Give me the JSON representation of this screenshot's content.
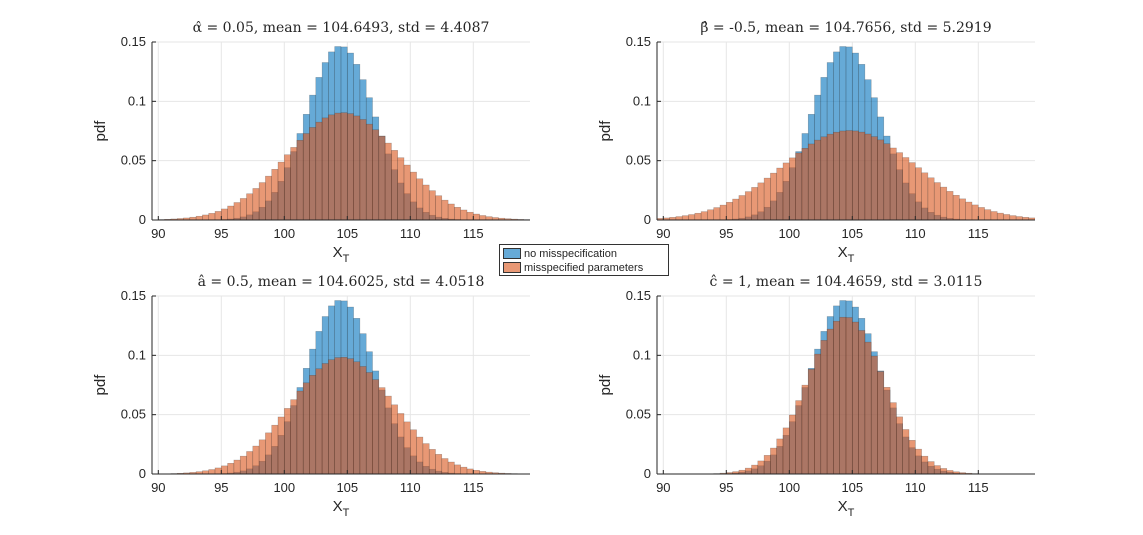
{
  "colors": {
    "no_misspec": "#0072BD",
    "misspec": "#D95319",
    "grid": "#e6e6e6",
    "axis": "#262626"
  },
  "legend": {
    "items": [
      {
        "label": "no misspecification",
        "color": "#0072BD"
      },
      {
        "label": "misspecified parameters",
        "color": "#D95319"
      }
    ]
  },
  "chart_data": [
    {
      "type": "histogram",
      "title": "α̂ = 0.05, mean = 104.6493, std = 4.4087",
      "xlabel": "X",
      "xlabel_sub": "T",
      "ylabel": "pdf",
      "xlim": [
        89.5,
        119.5
      ],
      "ylim": [
        0,
        0.15
      ],
      "xticks": [
        90,
        95,
        100,
        105,
        110,
        115
      ],
      "xtick_labels": [
        "90",
        "95",
        "100",
        "105",
        "110",
        "115"
      ],
      "yticks": [
        0,
        0.05,
        0.1,
        0.15
      ],
      "ytick_labels": [
        "0",
        "0.05",
        "0.1",
        "0.15"
      ],
      "bin_width": 0.5,
      "series": [
        {
          "name": "no misspecification",
          "mean": 104.4659,
          "std": 2.72
        },
        {
          "name": "misspecified parameters",
          "mean": 104.6493,
          "std": 4.4087
        }
      ]
    },
    {
      "type": "histogram",
      "title": "β̂ = -0.5, mean = 104.7656, std = 5.2919",
      "xlabel": "X",
      "xlabel_sub": "T",
      "ylabel": "pdf",
      "xlim": [
        89.5,
        119.5
      ],
      "ylim": [
        0,
        0.15
      ],
      "xticks": [
        90,
        95,
        100,
        105,
        110,
        115
      ],
      "xtick_labels": [
        "90",
        "95",
        "100",
        "105",
        "110",
        "115"
      ],
      "yticks": [
        0,
        0.05,
        0.1,
        0.15
      ],
      "ytick_labels": [
        "0",
        "0.05",
        "0.1",
        "0.15"
      ],
      "bin_width": 0.5,
      "series": [
        {
          "name": "no misspecification",
          "mean": 104.4659,
          "std": 2.72
        },
        {
          "name": "misspecified parameters",
          "mean": 104.7656,
          "std": 5.2919
        }
      ]
    },
    {
      "type": "histogram",
      "title": "â = 0.5, mean = 104.6025, std = 4.0518",
      "xlabel": "X",
      "xlabel_sub": "T",
      "ylabel": "pdf",
      "xlim": [
        89.5,
        119.5
      ],
      "ylim": [
        0,
        0.15
      ],
      "xticks": [
        90,
        95,
        100,
        105,
        110,
        115
      ],
      "xtick_labels": [
        "90",
        "95",
        "100",
        "105",
        "110",
        "115"
      ],
      "yticks": [
        0,
        0.05,
        0.1,
        0.15
      ],
      "ytick_labels": [
        "0",
        "0.05",
        "0.1",
        "0.15"
      ],
      "bin_width": 0.5,
      "series": [
        {
          "name": "no misspecification",
          "mean": 104.4659,
          "std": 2.72
        },
        {
          "name": "misspecified parameters",
          "mean": 104.6025,
          "std": 4.0518
        }
      ]
    },
    {
      "type": "histogram",
      "title": "ĉ = 1, mean = 104.4659, std = 3.0115",
      "xlabel": "X",
      "xlabel_sub": "T",
      "ylabel": "pdf",
      "xlim": [
        89.5,
        119.5
      ],
      "ylim": [
        0,
        0.15
      ],
      "xticks": [
        90,
        95,
        100,
        105,
        110,
        115
      ],
      "xtick_labels": [
        "90",
        "95",
        "100",
        "105",
        "110",
        "115"
      ],
      "yticks": [
        0,
        0.05,
        0.1,
        0.15
      ],
      "ytick_labels": [
        "0",
        "0.05",
        "0.1",
        "0.15"
      ],
      "bin_width": 0.5,
      "series": [
        {
          "name": "no misspecification",
          "mean": 104.4659,
          "std": 2.72
        },
        {
          "name": "misspecified parameters",
          "mean": 104.4659,
          "std": 3.0115
        }
      ]
    }
  ]
}
